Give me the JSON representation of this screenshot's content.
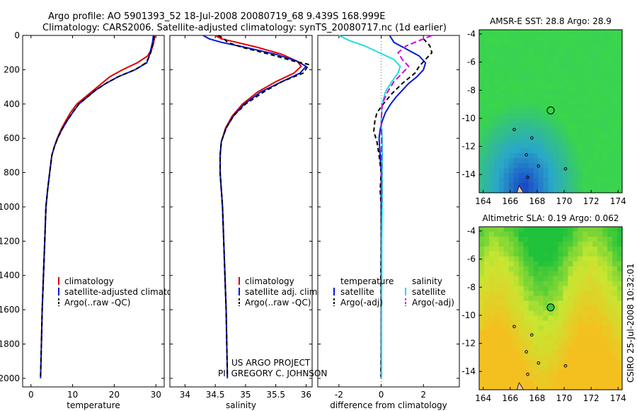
{
  "header": {
    "line1": "Argo profile: AO 5901393_52 18-Jul-2008 20080719_68 9.439S 168.999E",
    "line2": "Climatology: CARS2006. Satellite-adjusted climatology: synTS_20080717.nc (1d earlier)"
  },
  "credit": {
    "line1": "US ARGO PROJECT",
    "line2": "PI: GREGORY C. JOHNSON"
  },
  "stamp": "CSIRO 25-Jul-2008 10:32:01",
  "chart_data": [
    {
      "type": "line",
      "xlabel": "temperature",
      "ylim": [
        2050,
        0
      ],
      "xlim": [
        -2,
        32
      ],
      "xticks": [
        0,
        10,
        20,
        30
      ],
      "yticks": [
        0,
        200,
        400,
        600,
        800,
        1000,
        1200,
        1400,
        1600,
        1800,
        2000
      ],
      "legend": [
        "climatology",
        "satellite-adjusted climatology",
        "Argo(..raw -QC)"
      ],
      "series": [
        {
          "name": "climatology",
          "color": "#e00000",
          "dash": "",
          "points": [
            [
              29.7,
              0
            ],
            [
              29.5,
              40
            ],
            [
              29,
              80
            ],
            [
              28,
              120
            ],
            [
              25.5,
              160
            ],
            [
              22,
              200
            ],
            [
              19,
              240
            ],
            [
              17,
              280
            ],
            [
              15,
              320
            ],
            [
              13,
              360
            ],
            [
              11,
              400
            ],
            [
              9.5,
              450
            ],
            [
              8.3,
              500
            ],
            [
              7.2,
              550
            ],
            [
              6.3,
              600
            ],
            [
              5.6,
              650
            ],
            [
              5,
              700
            ],
            [
              4.5,
              800
            ],
            [
              4,
              900
            ],
            [
              3.6,
              1000
            ],
            [
              3.3,
              1200
            ],
            [
              3,
              1400
            ],
            [
              2.7,
              1600
            ],
            [
              2.5,
              1800
            ]
          ]
        },
        {
          "name": "satellite-adjusted climatology",
          "color": "#0018d8",
          "dash": "",
          "points": [
            [
              29.4,
              0
            ],
            [
              29.2,
              40
            ],
            [
              28.8,
              80
            ],
            [
              28.4,
              120
            ],
            [
              27.8,
              160
            ],
            [
              25,
              200
            ],
            [
              21,
              240
            ],
            [
              18,
              280
            ],
            [
              15.5,
              320
            ],
            [
              13.5,
              360
            ],
            [
              11.5,
              400
            ],
            [
              10,
              450
            ],
            [
              8.6,
              500
            ],
            [
              7.4,
              550
            ],
            [
              6.4,
              600
            ],
            [
              5.6,
              650
            ],
            [
              5,
              700
            ],
            [
              4.5,
              800
            ],
            [
              4,
              900
            ],
            [
              3.6,
              1000
            ],
            [
              3.3,
              1200
            ],
            [
              3,
              1400
            ],
            [
              2.7,
              1600
            ],
            [
              2.5,
              1800
            ],
            [
              2.3,
              2000
            ]
          ]
        },
        {
          "name": "Argo(..raw -QC)",
          "color": "#000000",
          "dash": "6,4",
          "points": [
            [
              29.6,
              5
            ],
            [
              29.4,
              40
            ],
            [
              29,
              80
            ],
            [
              28.5,
              120
            ],
            [
              27.6,
              160
            ],
            [
              25,
              200
            ],
            [
              21,
              240
            ],
            [
              18,
              280
            ],
            [
              15.5,
              320
            ],
            [
              13.5,
              360
            ],
            [
              11.5,
              400
            ],
            [
              10,
              450
            ],
            [
              8.6,
              500
            ],
            [
              7.4,
              550
            ],
            [
              6.4,
              600
            ],
            [
              5.6,
              650
            ],
            [
              5,
              700
            ],
            [
              4.5,
              800
            ],
            [
              4,
              900
            ],
            [
              3.6,
              1000
            ],
            [
              3.3,
              1200
            ],
            [
              3,
              1400
            ],
            [
              2.7,
              1600
            ],
            [
              2.5,
              1800
            ],
            [
              2.3,
              1990
            ]
          ]
        }
      ]
    },
    {
      "type": "line",
      "xlabel": "salinity",
      "ylim": [
        2050,
        0
      ],
      "xlim": [
        33.75,
        36.1
      ],
      "xticks": [
        34,
        34.5,
        35,
        35.5,
        36
      ],
      "legend": [
        "climatology",
        "satellite adj. clim.",
        "Argo(..raw -QC)"
      ],
      "series": [
        {
          "name": "climatology",
          "color": "#e00000",
          "dash": "",
          "points": [
            [
              34.5,
              0
            ],
            [
              34.6,
              20
            ],
            [
              34.85,
              40
            ],
            [
              35.2,
              70
            ],
            [
              35.6,
              110
            ],
            [
              35.85,
              150
            ],
            [
              35.92,
              180
            ],
            [
              35.8,
              220
            ],
            [
              35.5,
              270
            ],
            [
              35.2,
              330
            ],
            [
              34.95,
              400
            ],
            [
              34.78,
              470
            ],
            [
              34.67,
              540
            ],
            [
              34.6,
              620
            ],
            [
              34.58,
              700
            ],
            [
              34.58,
              800
            ],
            [
              34.6,
              900
            ],
            [
              34.62,
              1000
            ],
            [
              34.64,
              1200
            ],
            [
              34.66,
              1400
            ],
            [
              34.68,
              1600
            ],
            [
              34.69,
              1800
            ]
          ]
        },
        {
          "name": "satellite adj. clim.",
          "color": "#0018d8",
          "dash": "",
          "points": [
            [
              34.3,
              0
            ],
            [
              34.4,
              20
            ],
            [
              34.6,
              40
            ],
            [
              35,
              70
            ],
            [
              35.5,
              110
            ],
            [
              35.85,
              150
            ],
            [
              36.0,
              180
            ],
            [
              35.9,
              220
            ],
            [
              35.6,
              270
            ],
            [
              35.25,
              330
            ],
            [
              34.98,
              400
            ],
            [
              34.8,
              470
            ],
            [
              34.68,
              540
            ],
            [
              34.6,
              620
            ],
            [
              34.58,
              700
            ],
            [
              34.58,
              800
            ],
            [
              34.6,
              900
            ],
            [
              34.62,
              1000
            ],
            [
              34.64,
              1200
            ],
            [
              34.66,
              1400
            ],
            [
              34.68,
              1600
            ],
            [
              34.69,
              1800
            ],
            [
              34.7,
              2000
            ]
          ]
        },
        {
          "name": "Argo(..raw -QC)",
          "color": "#000000",
          "dash": "6,4",
          "points": [
            [
              34.55,
              0
            ],
            [
              34.65,
              20
            ],
            [
              34.7,
              40
            ],
            [
              34.95,
              70
            ],
            [
              35.4,
              110
            ],
            [
              35.8,
              150
            ],
            [
              36.05,
              170
            ],
            [
              35.95,
              220
            ],
            [
              35.6,
              270
            ],
            [
              35.3,
              330
            ],
            [
              35,
              400
            ],
            [
              34.8,
              470
            ],
            [
              34.68,
              540
            ],
            [
              34.6,
              620
            ],
            [
              34.58,
              700
            ],
            [
              34.58,
              800
            ],
            [
              34.6,
              900
            ],
            [
              34.62,
              1000
            ],
            [
              34.64,
              1200
            ],
            [
              34.66,
              1400
            ],
            [
              34.68,
              1600
            ],
            [
              34.69,
              1800
            ],
            [
              34.7,
              1990
            ]
          ]
        }
      ]
    },
    {
      "type": "line",
      "xlabel": "difference from climatology",
      "ylim": [
        2050,
        0
      ],
      "xlim": [
        -3,
        3.7
      ],
      "xticks": [
        -2,
        0,
        2
      ],
      "legend": [
        "temperature",
        "satellite",
        "Argo(-adj)",
        "salinity",
        "satellite",
        "Argo(-adj)"
      ],
      "series": [
        {
          "name": "satellite",
          "color": "#0018d8",
          "dash": "",
          "points": [
            [
              0.4,
              0
            ],
            [
              0.6,
              40
            ],
            [
              1.2,
              80
            ],
            [
              1.8,
              120
            ],
            [
              2.1,
              160
            ],
            [
              2.0,
              200
            ],
            [
              1.7,
              240
            ],
            [
              1.3,
              280
            ],
            [
              1.0,
              320
            ],
            [
              0.7,
              360
            ],
            [
              0.45,
              400
            ],
            [
              0.2,
              450
            ],
            [
              0.05,
              500
            ],
            [
              -0.05,
              550
            ],
            [
              -0.1,
              600
            ],
            [
              -0.05,
              700
            ],
            [
              0,
              800
            ],
            [
              0,
              1000
            ],
            [
              0,
              1200
            ],
            [
              0,
              1400
            ],
            [
              0,
              1600
            ],
            [
              0,
              1800
            ],
            [
              0,
              2000
            ]
          ]
        },
        {
          "name": "Argo(-adj)",
          "color": "#000000",
          "dash": "6,4",
          "points": [
            [
              2.0,
              20
            ],
            [
              2.3,
              60
            ],
            [
              2.4,
              100
            ],
            [
              2.1,
              140
            ],
            [
              1.8,
              180
            ],
            [
              1.6,
              220
            ],
            [
              1.0,
              280
            ],
            [
              0.5,
              340
            ],
            [
              0.1,
              400
            ],
            [
              -0.2,
              450
            ],
            [
              -0.3,
              500
            ],
            [
              -0.35,
              560
            ],
            [
              -0.2,
              620
            ],
            [
              -0.1,
              700
            ],
            [
              0,
              800
            ],
            [
              -0.05,
              900
            ],
            [
              0,
              1000
            ],
            [
              0,
              1200
            ],
            [
              -0.02,
              1400
            ],
            [
              0,
              1600
            ],
            [
              0,
              1800
            ],
            [
              -0.02,
              1990
            ]
          ]
        },
        {
          "name": "satellite",
          "color": "#22dde0",
          "dash": "",
          "points": [
            [
              -2.0,
              0
            ],
            [
              -1.5,
              30
            ],
            [
              -0.8,
              60
            ],
            [
              -0.1,
              100
            ],
            [
              0.6,
              140
            ],
            [
              0.9,
              180
            ],
            [
              0.8,
              220
            ],
            [
              0.5,
              270
            ],
            [
              0.2,
              330
            ],
            [
              0.05,
              400
            ],
            [
              0,
              500
            ],
            [
              0.05,
              600
            ],
            [
              0.05,
              800
            ],
            [
              0.05,
              1000
            ],
            [
              0.03,
              1200
            ],
            [
              0.03,
              1400
            ],
            [
              0.02,
              1600
            ],
            [
              0.02,
              1800
            ],
            [
              0.02,
              2000
            ]
          ]
        },
        {
          "name": "Argo(-adj)",
          "color": "#d800d8",
          "dash": "8,4",
          "points": [
            [
              2.4,
              0
            ],
            [
              1.8,
              30
            ],
            [
              1.2,
              60
            ],
            [
              0.8,
              100
            ],
            [
              1.0,
              140
            ],
            [
              1.3,
              180
            ],
            [
              1.0,
              220
            ],
            [
              0.6,
              270
            ],
            [
              0.3,
              330
            ],
            [
              0.05,
              400
            ],
            [
              0,
              500
            ],
            [
              0.02,
              600
            ],
            [
              0.02,
              800
            ],
            [
              0.02,
              1000
            ]
          ]
        }
      ]
    },
    {
      "type": "heatmap",
      "title": "AMSR-E SST: 28.8 Argo: 28.9",
      "xticks": [
        164,
        166,
        168,
        170,
        172,
        174
      ],
      "yticks": [
        -4,
        -6,
        -8,
        -10,
        -12,
        -14
      ],
      "xlim": [
        163.7,
        174.3
      ],
      "ylim": [
        -15.3,
        -3.7
      ],
      "marker": {
        "lon": 169.0,
        "lat": -9.44,
        "filled": false
      },
      "colors": {
        "base": "#3ad64a",
        "cool": "#2aa8c8",
        "coldest": "#1a46c8"
      }
    },
    {
      "type": "heatmap",
      "title": "Altimetric SLA: 0.19 Argo: 0.062",
      "xticks": [
        164,
        166,
        168,
        170,
        172,
        174
      ],
      "yticks": [
        -4,
        -6,
        -8,
        -10,
        -12,
        -14
      ],
      "xlim": [
        163.7,
        174.3
      ],
      "ylim": [
        -15.3,
        -3.7
      ],
      "marker": {
        "lon": 169.0,
        "lat": -9.44,
        "filled": true
      },
      "colors": {
        "base": "#1fc23a",
        "mid": "#c8e632",
        "high": "#f4c020",
        "marker": "#3cc83c"
      }
    }
  ]
}
